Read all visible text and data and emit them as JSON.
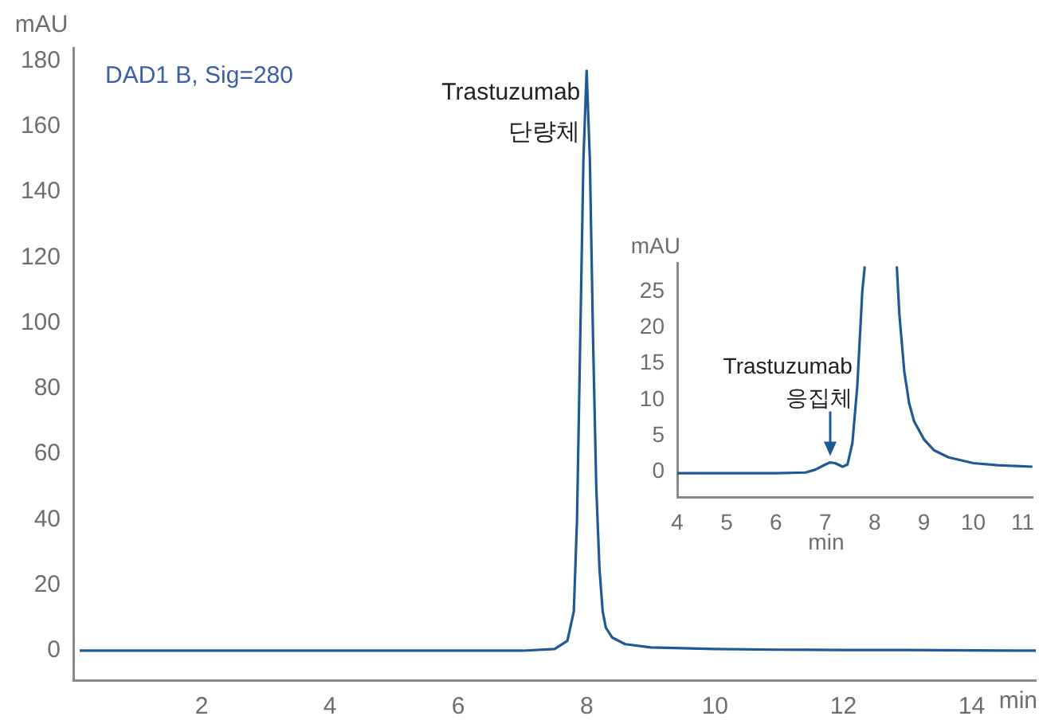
{
  "chart_data": [
    {
      "type": "line",
      "ylabel": "mAU",
      "xlabel": "min",
      "xlim": [
        0,
        15
      ],
      "ylim": [
        -9,
        184
      ],
      "xticks": [
        2,
        4,
        6,
        8,
        10,
        12,
        14
      ],
      "yticks": [
        0,
        20,
        40,
        60,
        80,
        100,
        120,
        140,
        160,
        180
      ],
      "grid": false,
      "legend": false,
      "marker": "none",
      "annotations": [
        "DAD1 B, Sig=280",
        {
          "text": "Trastuzumab 단량체",
          "x": 8,
          "y": 177
        }
      ],
      "series": [
        {
          "color": "#1f5a96",
          "x": [
            0.1,
            1,
            2,
            3,
            4,
            5,
            6,
            7,
            7.5,
            7.7,
            7.8,
            7.85,
            7.9,
            7.95,
            8,
            8.05,
            8.1,
            8.15,
            8.2,
            8.25,
            8.3,
            8.4,
            8.6,
            9,
            10,
            11,
            12,
            13,
            14,
            15
          ],
          "values": [
            0,
            0,
            0,
            0,
            0,
            0,
            0,
            0,
            0.5,
            3,
            12,
            40,
            95,
            150,
            177,
            150,
            95,
            50,
            25,
            12,
            7,
            4,
            2,
            1,
            0.5,
            0.3,
            0.2,
            0.2,
            0.1,
            0
          ]
        }
      ]
    },
    {
      "type": "line",
      "ylabel": "mAU",
      "xlabel": "min",
      "xlim": [
        4,
        11.2
      ],
      "ylim": [
        -3.5,
        29
      ],
      "xticks": [
        4,
        5,
        6,
        7,
        8,
        9,
        10,
        11
      ],
      "yticks": [
        0,
        5,
        10,
        15,
        20,
        25
      ],
      "grid": false,
      "legend": false,
      "marker": "none",
      "annotations": [
        {
          "text": "Trastuzumab 응집체",
          "x": 7.1,
          "y": 1.3
        }
      ],
      "series": [
        {
          "color": "#1f5a96",
          "x": [
            4,
            5,
            6,
            6.6,
            6.8,
            7,
            7.1,
            7.2,
            7.35,
            7.45,
            7.55,
            7.65,
            7.75,
            7.8,
            8.1,
            8.45,
            8.5,
            8.6,
            8.7,
            8.8,
            9,
            9.2,
            9.5,
            10,
            10.5,
            11.2
          ],
          "values": [
            -0.2,
            -0.2,
            -0.2,
            -0.1,
            0.3,
            1,
            1.3,
            1.2,
            0.7,
            1,
            4,
            12,
            25,
            28.5,
            null,
            28.5,
            22,
            14,
            9.5,
            7,
            4.5,
            3,
            2,
            1.2,
            0.9,
            0.7
          ]
        }
      ]
    }
  ]
}
